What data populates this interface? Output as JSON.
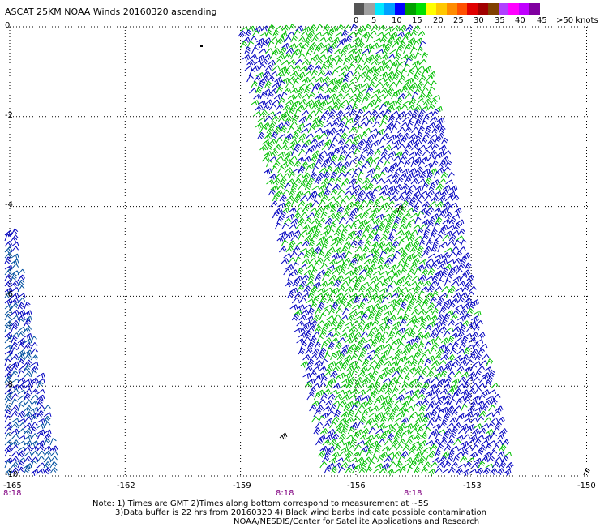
{
  "title": "ASCAT 25KM NOAA Winds 20160320 ascending",
  "legend": {
    "colors": [
      "#555555",
      "#a0a0a0",
      "#00e8ff",
      "#00a0ff",
      "#0000ff",
      "#00a000",
      "#00e000",
      "#ffff00",
      "#ffc800",
      "#ff8c00",
      "#ff5000",
      "#e00000",
      "#a00000",
      "#804000",
      "#b040ff",
      "#ff00ff",
      "#c000ff",
      "#8000a0"
    ],
    "ticks": [
      "0",
      "5",
      "10",
      "15",
      "20",
      "25",
      "30",
      "35",
      "40",
      "45"
    ],
    "unit": ">50 knots"
  },
  "map": {
    "lat_labels": [
      "0",
      "-2",
      "-4",
      "-6",
      "-8",
      "-10"
    ],
    "lon_labels": [
      "-165",
      "-162",
      "-159",
      "-156",
      "-153",
      "-150"
    ],
    "time_labels": [
      "8:18",
      "8:18",
      "8:18"
    ],
    "colors": {
      "grid": "#000000",
      "strong": "#00c000",
      "weak": "#0000c0",
      "swath_edge": "#0050a0"
    }
  },
  "notes": {
    "line1": "Note: 1) Times are GMT 2)Times along bottom correspond to measurement at ~5S",
    "line2": "3)Data buffer is 22 hrs from 20160320 4) Black wind barbs indicate possible contamination",
    "line3": "NOAA/NESDIS/Center for Satellite Applications and Research"
  }
}
